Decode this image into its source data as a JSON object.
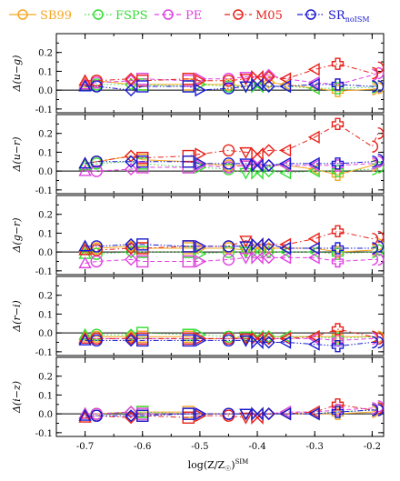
{
  "chart_data": {
    "type": "line",
    "x": [
      -0.7,
      -0.68,
      -0.62,
      -0.6,
      -0.52,
      -0.5,
      -0.45,
      -0.42,
      -0.4,
      -0.38,
      -0.35,
      -0.3,
      -0.26,
      -0.2,
      -0.19
    ],
    "xlabel_main": "log(Z/Z",
    "xlabel_sub": "☉",
    "xlabel_close": ")",
    "xlabel_sup": "SIM",
    "xticks": [
      -0.7,
      -0.6,
      -0.5,
      -0.4,
      -0.3,
      -0.2
    ],
    "xtick_labels": [
      "-0.7",
      "-0.6",
      "-0.5",
      "-0.4",
      "-0.3",
      "-0.2"
    ],
    "xlim": [
      -0.75,
      -0.18
    ],
    "legend": [
      {
        "label": "SB99",
        "color": "#f5a623",
        "marker": "circle",
        "dash": "solid"
      },
      {
        "label": "FSPS",
        "color": "#33dd33",
        "marker": "circle",
        "dash": "dot"
      },
      {
        "label": "PE",
        "color": "#e040e0",
        "marker": "circle",
        "dash": "dash"
      },
      {
        "label": "M05",
        "color": "#e8221a",
        "marker": "circle",
        "dash": "dashdot"
      },
      {
        "label": "SR",
        "sub": "noISM",
        "color": "#1a1ad0",
        "marker": "circle",
        "dash": "dashdotdot"
      }
    ],
    "panels": [
      {
        "ylabel": "Δ(u−g)",
        "ylim": [
          -0.12,
          0.3
        ],
        "yticks": [
          -0.1,
          0.0,
          0.1,
          0.2
        ],
        "ytick_labels": [
          "-0.1",
          "0.0",
          "0.1",
          "0.2"
        ],
        "series": [
          {
            "color": "#f5a623",
            "values": [
              0.04,
              0.05,
              0.03,
              0.03,
              0.03,
              0.03,
              0.03,
              0.02,
              0.03,
              0.04,
              0.03,
              0.01,
              -0.005,
              0.005,
              0.01
            ]
          },
          {
            "color": "#33dd33",
            "values": [
              0.02,
              0.03,
              0.03,
              0.03,
              0.02,
              0.03,
              0.02,
              0.02,
              0.02,
              0.02,
              0.02,
              0.01,
              0.01,
              0.015,
              0.02
            ]
          },
          {
            "color": "#e040e0",
            "values": [
              0.03,
              0.04,
              0.05,
              0.06,
              0.05,
              0.06,
              0.06,
              0.07,
              0.07,
              0.08,
              0.06,
              0.04,
              0.03,
              0.08,
              0.09
            ]
          },
          {
            "color": "#e8221a",
            "values": [
              0.05,
              0.05,
              0.06,
              0.05,
              0.06,
              0.05,
              0.05,
              0.06,
              0.07,
              0.07,
              0.06,
              0.11,
              0.14,
              0.09,
              0.12
            ]
          },
          {
            "color": "#1a1ad0",
            "values": [
              0.02,
              0.02,
              0.0,
              0.02,
              0.02,
              0.0,
              0.01,
              0.02,
              0.03,
              0.02,
              0.02,
              0.03,
              0.03,
              0.02,
              0.02
            ]
          }
        ]
      },
      {
        "ylabel": "Δ(u−r)",
        "ylim": [
          -0.12,
          0.3
        ],
        "yticks": [
          -0.1,
          0.0,
          0.1,
          0.2
        ],
        "ytick_labels": [
          "-0.1",
          "0.0",
          "0.1",
          "0.2"
        ],
        "series": [
          {
            "color": "#f5a623",
            "values": [
              0.04,
              0.05,
              0.08,
              0.06,
              0.05,
              0.04,
              0.03,
              0.03,
              0.03,
              0.03,
              0.03,
              0.01,
              -0.02,
              0.03,
              0.05
            ]
          },
          {
            "color": "#33dd33",
            "values": [
              0.03,
              0.04,
              0.05,
              0.04,
              0.02,
              0.02,
              0.01,
              -0.01,
              -0.01,
              0.0,
              -0.01,
              0.0,
              0.0,
              0.01,
              0.02
            ]
          },
          {
            "color": "#e040e0",
            "values": [
              0.0,
              0.0,
              0.01,
              0.02,
              0.02,
              0.03,
              0.02,
              0.03,
              0.04,
              0.03,
              0.03,
              0.03,
              0.03,
              0.04,
              0.05
            ]
          },
          {
            "color": "#e8221a",
            "values": [
              0.04,
              0.05,
              0.08,
              0.07,
              0.08,
              0.09,
              0.11,
              0.1,
              0.09,
              0.11,
              0.11,
              0.18,
              0.25,
              0.13,
              0.2
            ]
          },
          {
            "color": "#1a1ad0",
            "values": [
              0.04,
              0.05,
              0.05,
              0.05,
              0.05,
              0.04,
              0.04,
              0.04,
              0.03,
              0.03,
              0.04,
              0.04,
              0.04,
              0.05,
              0.06
            ]
          }
        ]
      },
      {
        "ylabel": "Δ(g−r)",
        "ylim": [
          -0.12,
          0.3
        ],
        "yticks": [
          -0.1,
          0.0,
          0.1,
          0.2
        ],
        "ytick_labels": [
          "-0.1",
          "0.0",
          "0.1",
          "0.2"
        ],
        "series": [
          {
            "color": "#f5a623",
            "values": [
              0.02,
              0.02,
              0.03,
              0.02,
              0.02,
              0.02,
              0.02,
              0.01,
              0.02,
              0.02,
              0.02,
              0.02,
              0.0,
              0.01,
              0.04
            ]
          },
          {
            "color": "#33dd33",
            "values": [
              -0.01,
              -0.01,
              0.0,
              0.0,
              0.0,
              -0.01,
              0.0,
              0.0,
              0.0,
              0.0,
              0.0,
              0.0,
              -0.01,
              0.0,
              0.01
            ]
          },
          {
            "color": "#e040e0",
            "values": [
              -0.06,
              -0.05,
              -0.04,
              -0.05,
              -0.05,
              -0.05,
              -0.04,
              -0.03,
              -0.03,
              -0.03,
              -0.03,
              -0.03,
              -0.05,
              -0.04,
              -0.04
            ]
          },
          {
            "color": "#e8221a",
            "values": [
              0.01,
              0.01,
              0.02,
              0.02,
              0.03,
              0.03,
              0.03,
              0.06,
              0.04,
              0.04,
              0.04,
              0.07,
              0.11,
              0.07,
              0.08
            ]
          },
          {
            "color": "#1a1ad0",
            "values": [
              0.03,
              0.03,
              0.04,
              0.04,
              0.03,
              0.03,
              0.03,
              0.03,
              0.04,
              0.04,
              0.02,
              0.02,
              0.02,
              0.02,
              0.03
            ]
          }
        ]
      },
      {
        "ylabel": "Δ(r−i)",
        "ylim": [
          -0.12,
          0.3
        ],
        "yticks": [
          -0.1,
          0.0,
          0.1,
          0.2
        ],
        "ytick_labels": [
          "-0.1",
          "0.0",
          "0.1",
          "0.2"
        ],
        "series": [
          {
            "color": "#f5a623",
            "values": [
              -0.02,
              -0.02,
              -0.02,
              -0.02,
              -0.02,
              -0.03,
              -0.03,
              -0.02,
              -0.02,
              -0.02,
              -0.02,
              -0.02,
              -0.02,
              -0.02,
              -0.02
            ]
          },
          {
            "color": "#33dd33",
            "values": [
              -0.01,
              -0.01,
              -0.01,
              0.0,
              -0.01,
              -0.01,
              -0.02,
              -0.02,
              -0.02,
              -0.02,
              -0.02,
              -0.02,
              -0.03,
              -0.02,
              -0.03
            ]
          },
          {
            "color": "#e040e0",
            "values": [
              -0.03,
              -0.03,
              -0.03,
              -0.03,
              -0.03,
              -0.03,
              -0.03,
              -0.03,
              -0.03,
              -0.03,
              -0.03,
              -0.03,
              -0.04,
              -0.03,
              -0.03
            ]
          },
          {
            "color": "#e8221a",
            "values": [
              -0.03,
              -0.03,
              -0.03,
              -0.03,
              -0.03,
              -0.03,
              -0.03,
              -0.03,
              -0.03,
              -0.03,
              -0.03,
              -0.02,
              0.02,
              -0.02,
              -0.03
            ]
          },
          {
            "color": "#1a1ad0",
            "values": [
              -0.04,
              -0.04,
              -0.04,
              -0.04,
              -0.04,
              -0.04,
              -0.04,
              -0.04,
              -0.05,
              -0.05,
              -0.05,
              -0.06,
              -0.07,
              -0.05,
              -0.05
            ]
          }
        ]
      },
      {
        "ylabel": "Δ(i−z)",
        "ylim": [
          -0.12,
          0.3
        ],
        "yticks": [
          -0.1,
          0.0,
          0.1,
          0.2
        ],
        "ytick_labels": [
          "-0.1",
          "0.0",
          "0.1",
          "0.2"
        ],
        "series": [
          {
            "color": "#f5a623",
            "values": [
              0.0,
              0.0,
              0.01,
              0.01,
              0.01,
              0.0,
              0.0,
              0.0,
              0.0,
              0.0,
              0.0,
              0.0,
              0.0,
              0.01,
              0.02
            ]
          },
          {
            "color": "#33dd33",
            "values": [
              0.0,
              0.0,
              0.01,
              0.01,
              0.0,
              0.0,
              0.0,
              0.0,
              0.0,
              0.0,
              0.0,
              0.0,
              0.01,
              0.02,
              0.03
            ]
          },
          {
            "color": "#e040e0",
            "values": [
              0.0,
              0.0,
              0.01,
              0.0,
              0.0,
              0.0,
              0.0,
              0.0,
              0.0,
              0.0,
              0.01,
              0.01,
              0.02,
              0.03,
              0.04
            ]
          },
          {
            "color": "#e8221a",
            "values": [
              -0.02,
              -0.01,
              -0.02,
              -0.01,
              -0.02,
              -0.01,
              -0.01,
              -0.02,
              -0.02,
              0.0,
              0.0,
              0.01,
              0.05,
              0.02,
              0.03
            ]
          },
          {
            "color": "#1a1ad0",
            "values": [
              -0.01,
              -0.01,
              -0.01,
              -0.01,
              0.0,
              0.0,
              0.0,
              0.0,
              0.0,
              0.0,
              0.0,
              0.0,
              0.01,
              0.02,
              0.02
            ]
          }
        ]
      }
    ]
  }
}
